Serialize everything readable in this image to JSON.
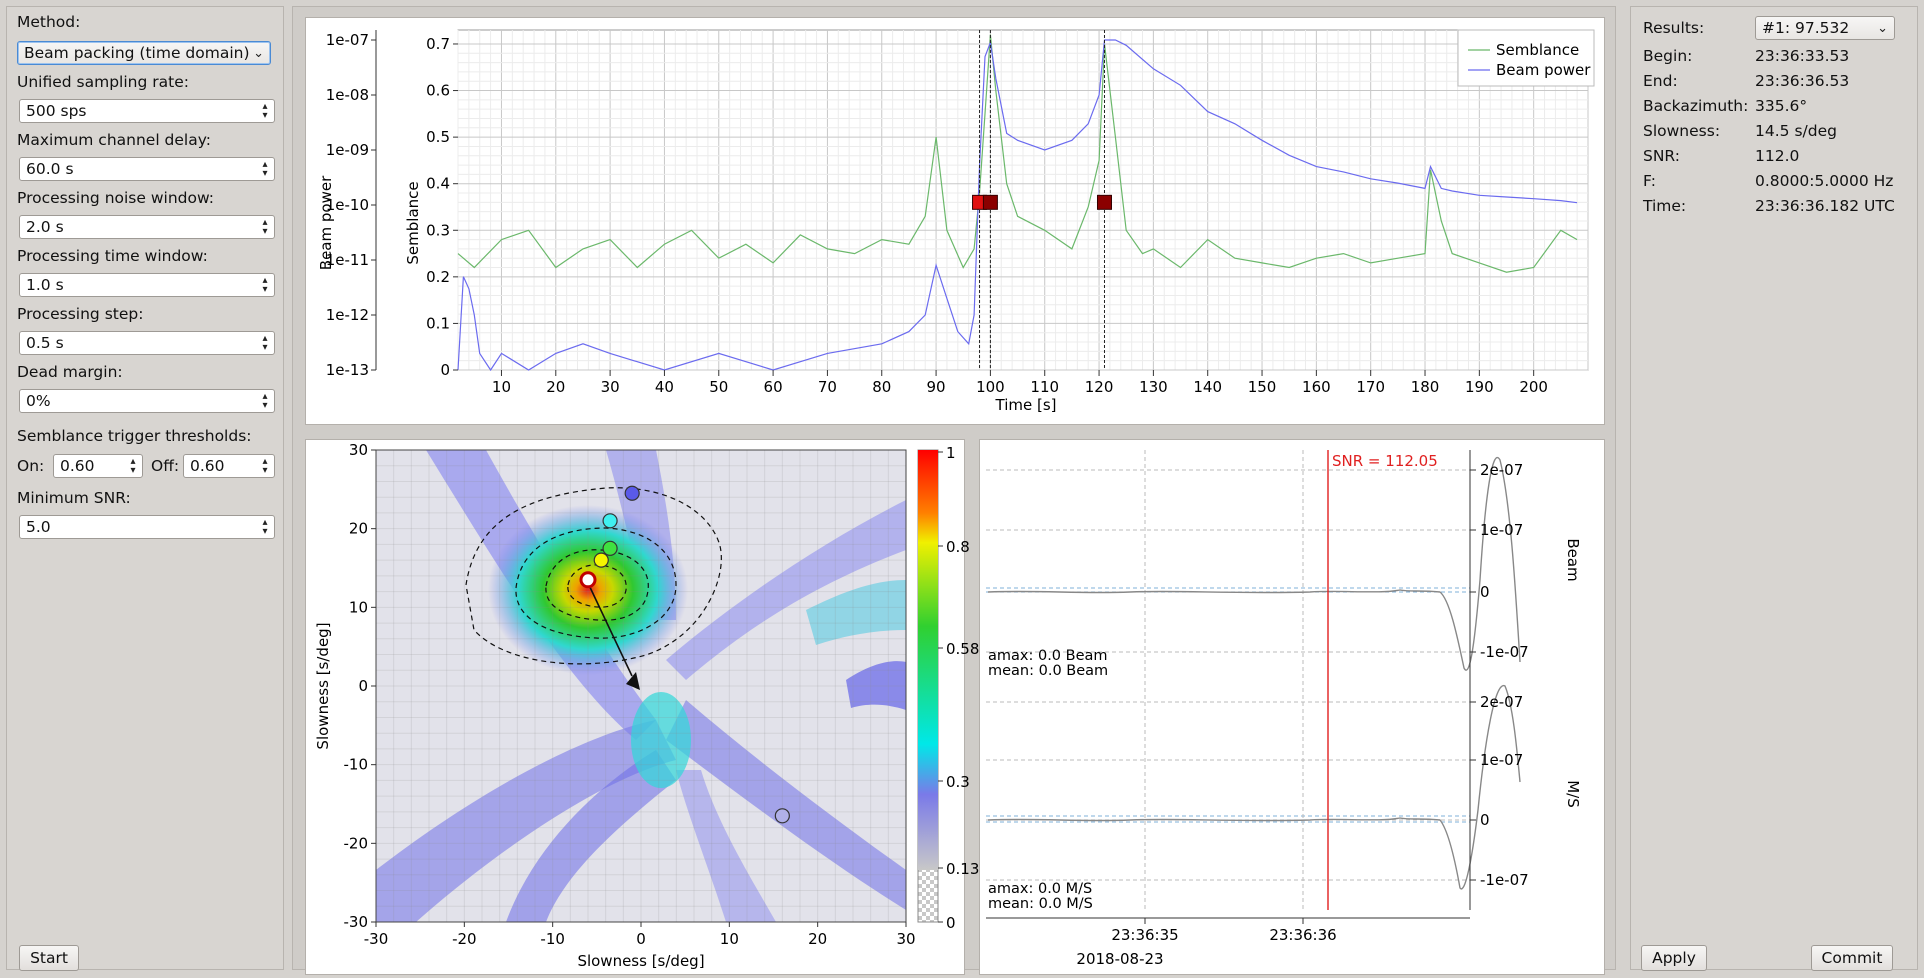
{
  "settings": {
    "method_label": "Method:",
    "method_value": "Beam packing (time domain)",
    "sampling_label": "Unified sampling rate:",
    "sampling_value": "500 sps",
    "max_delay_label": "Maximum channel delay:",
    "max_delay_value": "60.0 s",
    "noise_window_label": "Processing noise window:",
    "noise_window_value": "2.0 s",
    "time_window_label": "Processing time window:",
    "time_window_value": "1.0 s",
    "step_label": "Processing step:",
    "step_value": "0.5 s",
    "dead_margin_label": "Dead margin:",
    "dead_margin_value": "0%",
    "trigger_label": "Semblance trigger thresholds:",
    "on_label": "On:",
    "on_value": "0.60",
    "off_label": "Off:",
    "off_value": "0.60",
    "min_snr_label": "Minimum SNR:",
    "min_snr_value": "5.0",
    "start_button": "Start"
  },
  "results": {
    "results_label": "Results:",
    "results_value": "#1: 97.532",
    "rows": [
      {
        "key": "Begin:",
        "value": "23:36:33.53"
      },
      {
        "key": "End:",
        "value": "23:36:36.53"
      },
      {
        "key": "Backazimuth:",
        "value": "335.6°"
      },
      {
        "key": "Slowness:",
        "value": "14.5 s/deg"
      },
      {
        "key": "SNR:",
        "value": "112.0"
      },
      {
        "key": "F:",
        "value": "0.8000:5.0000 Hz"
      },
      {
        "key": "Time:",
        "value": "23:36:36.182 UTC"
      }
    ],
    "apply_button": "Apply",
    "commit_button": "Commit"
  },
  "icons": {
    "dropdown": "chevron-down-icon",
    "spinbox": "spin-arrows-icon"
  },
  "colors": {
    "semblance": "#6bb86b",
    "beam_power": "#6b6bef",
    "trigger_marker": "#8b0000",
    "snr_line": "#e02020",
    "selection_highlight": "#4a8ad4"
  },
  "chart_data": [
    {
      "type": "line",
      "name": "semblance-beam-plot",
      "xlabel": "Time [s]",
      "ylabel_left": "Beam power",
      "ylabel_right": "Semblance",
      "xlim": [
        2,
        210
      ],
      "x_ticks": [
        "10",
        "20",
        "30",
        "40",
        "50",
        "60",
        "70",
        "80",
        "90",
        "100",
        "110",
        "120",
        "130",
        "140",
        "150",
        "160",
        "170",
        "180",
        "190",
        "200"
      ],
      "beam_ticks": [
        "1e-07",
        "1e-08",
        "1e-09",
        "1e-10",
        "1e-11",
        "1e-12",
        "1e-13"
      ],
      "semblance_ticks": [
        "0.7",
        "0.6",
        "0.5",
        "0.4",
        "0.3",
        "0.2",
        "0.1",
        "0"
      ],
      "semblance_ylim": [
        0,
        0.73
      ],
      "grid": true,
      "legend": [
        "Semblance",
        "Beam power"
      ],
      "legend_position": "top-right",
      "series": [
        {
          "name": "Semblance",
          "x": [
            2,
            5,
            10,
            15,
            20,
            25,
            30,
            35,
            40,
            45,
            50,
            55,
            60,
            65,
            70,
            75,
            80,
            85,
            88,
            90,
            92,
            95,
            97,
            98,
            99,
            100,
            101,
            103,
            105,
            110,
            115,
            118,
            120,
            121,
            123,
            125,
            128,
            130,
            135,
            140,
            145,
            150,
            155,
            160,
            165,
            170,
            175,
            180,
            181,
            183,
            185,
            190,
            195,
            200,
            205,
            208
          ],
          "y": [
            0.25,
            0.22,
            0.28,
            0.3,
            0.22,
            0.26,
            0.28,
            0.22,
            0.27,
            0.3,
            0.24,
            0.27,
            0.23,
            0.29,
            0.26,
            0.25,
            0.28,
            0.27,
            0.33,
            0.5,
            0.3,
            0.22,
            0.26,
            0.38,
            0.55,
            0.72,
            0.6,
            0.4,
            0.33,
            0.3,
            0.26,
            0.35,
            0.45,
            0.7,
            0.5,
            0.3,
            0.25,
            0.26,
            0.22,
            0.28,
            0.24,
            0.23,
            0.22,
            0.24,
            0.25,
            0.23,
            0.24,
            0.25,
            0.43,
            0.32,
            0.25,
            0.23,
            0.21,
            0.22,
            0.3,
            0.28
          ]
        },
        {
          "name": "Beam power",
          "x": [
            2,
            3,
            4,
            5,
            6,
            8,
            10,
            15,
            20,
            25,
            30,
            40,
            50,
            60,
            70,
            80,
            85,
            88,
            90,
            92,
            94,
            96,
            97,
            98,
            99,
            100,
            101,
            103,
            105,
            110,
            115,
            118,
            120,
            121,
            123,
            125,
            130,
            135,
            140,
            145,
            150,
            155,
            160,
            165,
            170,
            175,
            180,
            181,
            183,
            185,
            190,
            195,
            200,
            205,
            208
          ],
          "y": [
            1e-13,
            5e-12,
            3e-12,
            1e-12,
            2e-13,
            1e-13,
            2e-13,
            1e-13,
            2e-13,
            3e-13,
            2e-13,
            1e-13,
            2e-13,
            1e-13,
            2e-13,
            3e-13,
            5e-13,
            1e-12,
            8e-12,
            2e-12,
            5e-13,
            3e-13,
            1e-12,
            5e-10,
            5e-08,
            9e-08,
            2e-08,
            2e-09,
            1.5e-09,
            1e-09,
            1.5e-09,
            3e-09,
            1e-08,
            1e-07,
            1e-07,
            8e-08,
            3e-08,
            1.5e-08,
            5e-09,
            3e-09,
            1.5e-09,
            8e-10,
            5e-10,
            4e-10,
            3e-10,
            2.5e-10,
            2e-10,
            5e-10,
            2e-10,
            1.8e-10,
            1.5e-10,
            1.4e-10,
            1.3e-10,
            1.2e-10,
            1.1e-10
          ]
        }
      ],
      "trigger_markers_x": [
        98,
        100,
        121
      ],
      "trigger_marker_value": 0.36
    },
    {
      "type": "heatmap",
      "name": "slowness-grid",
      "xlabel": "Slowness [s/deg]",
      "ylabel": "Slowness [s/deg]",
      "xlim": [
        -30,
        30
      ],
      "ylim": [
        -30,
        30
      ],
      "x_ticks": [
        "-30",
        "-20",
        "-10",
        "0",
        "10",
        "20",
        "30"
      ],
      "y_ticks": [
        "30",
        "20",
        "10",
        "0",
        "-10",
        "-20",
        "-30"
      ],
      "colorbar_ticks": [
        "1",
        "0.8",
        "0.58",
        "0.3",
        "0.13",
        "0"
      ],
      "peak": {
        "x": -6,
        "y": 13.5
      },
      "arrow_end": {
        "x": 0,
        "y": 0
      },
      "points": [
        {
          "x": -6,
          "y": 13.5,
          "color": "#ffffff",
          "ring": "#c00000"
        },
        {
          "x": -4.5,
          "y": 16,
          "color": "#f5f500"
        },
        {
          "x": -3.5,
          "y": 17.5,
          "color": "#40e040"
        },
        {
          "x": -3.5,
          "y": 21,
          "color": "#40f0f0"
        },
        {
          "x": -1,
          "y": 24.5,
          "color": "#5a5ae8"
        },
        {
          "x": 16,
          "y": -16.5,
          "color": "#b0b0e8"
        }
      ]
    },
    {
      "type": "line",
      "name": "waveform-traces",
      "snr_label": "SNR = 112.05",
      "time_ticks": [
        "23:36:35",
        "23:36:36"
      ],
      "date_label": "2018-08-23",
      "traces": [
        {
          "name": "Beam",
          "ticks": [
            "2e-07",
            "1e-07",
            "0",
            "-1e-07"
          ],
          "amax": "amax: 0.0 Beam",
          "mean": "mean: 0.0 Beam"
        },
        {
          "name": "M/S",
          "ticks": [
            "2e-07",
            "1e-07",
            "0",
            "-1e-07"
          ],
          "amax": "amax: 0.0 M/S",
          "mean": "mean: 0.0 M/S"
        }
      ]
    }
  ]
}
